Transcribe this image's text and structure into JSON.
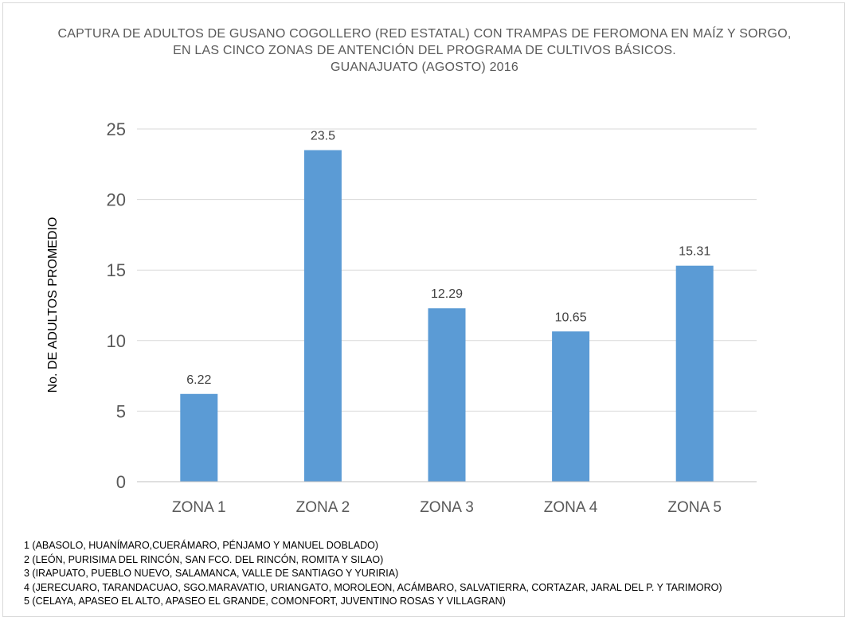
{
  "chart_data": {
    "type": "bar",
    "title_lines": [
      "CAPTURA DE ADULTOS DE GUSANO COGOLLERO (RED ESTATAL) CON TRAMPAS DE FEROMONA EN MAÍZ Y SORGO,",
      "EN LAS CINCO ZONAS DE ANTENCIÓN DEL PROGRAMA DE CULTIVOS BÁSICOS.",
      "GUANAJUATO (AGOSTO) 2016"
    ],
    "ylabel": "No. DE ADULTOS PROMEDIO",
    "xlabel": "",
    "categories": [
      "ZONA 1",
      "ZONA 2",
      "ZONA 3",
      "ZONA 4",
      "ZONA 5"
    ],
    "values": [
      6.22,
      23.5,
      12.29,
      10.65,
      15.31
    ],
    "data_labels": [
      "6.22",
      "23.5",
      "12.29",
      "10.65",
      "15.31"
    ],
    "ylim": [
      0,
      25
    ],
    "yticks": [
      0,
      5,
      10,
      15,
      20,
      25
    ],
    "grid": true,
    "bar_color": "#5b9bd5",
    "grid_color": "#d9d9d9"
  },
  "notes": [
    "1 (ABASOLO,  HUANÍMARO,CUERÁMARO,  PÉNJAMO Y MANUEL DOBLADO)",
    "2 (LEÓN, PURISIMA DEL RINCÓN, SAN FCO. DEL RINCÓN, ROMITA Y SILAO)",
    "3 (IRAPUATO,  PUEBLO NUEVO, SALAMANCA,  VALLE DE SANTIAGO Y YURIRIA)",
    "4 (JERECUARO, TARANDACUAO, SGO.MARAVATIO, URIANGATO, MOROLEON,  ACÁMBARO, SALVATIERRA, CORTAZAR, JARAL DEL P. Y TARIMORO)",
    "5 (CELAYA,  APASEO  EL ALTO,  APASEO  EL GRANDE,  COMONFORT,  JUVENTINO ROSAS Y VILLAGRAN)"
  ]
}
